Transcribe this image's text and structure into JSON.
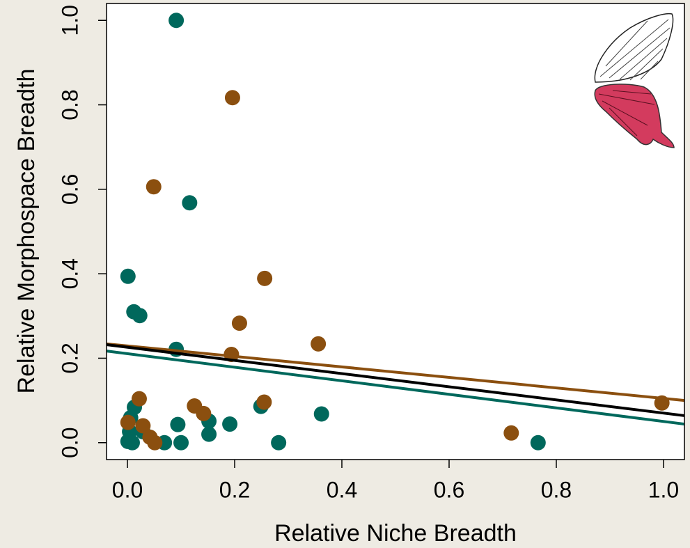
{
  "chart_data": {
    "type": "scatter",
    "xlabel": "Relative Niche Breadth",
    "ylabel": "Relative Morphospace Breadth",
    "xlim": [
      -0.039,
      1.039
    ],
    "ylim": [
      -0.04,
      1.04
    ],
    "xticks": [
      {
        "value": 0,
        "label": "0.0"
      },
      0.2,
      0.4,
      0.6,
      0.8,
      {
        "value": 1,
        "label": "1.0"
      }
    ],
    "yticks": [
      {
        "value": 0,
        "label": "0.0"
      },
      0.2,
      0.4,
      0.6,
      0.8,
      {
        "value": 1,
        "label": "1.0"
      }
    ],
    "series": [
      {
        "color": "#00685c",
        "x": [
          0.091,
          0.116,
          0.001,
          0.012,
          0.023,
          0.091,
          0.013,
          0.006,
          0.004,
          0.001,
          0.009,
          0.029,
          0.069,
          0.094,
          0.1,
          0.152,
          0.152,
          0.191,
          0.249,
          0.282,
          0.362,
          0.766
        ],
        "values": [
          1.0,
          0.568,
          0.394,
          0.31,
          0.301,
          0.221,
          0.084,
          0.059,
          0.026,
          0.003,
          0.0,
          0.026,
          0.0,
          0.043,
          0.0,
          0.051,
          0.02,
          0.044,
          0.086,
          0.0,
          0.068,
          0.0
        ]
      },
      {
        "color": "#8b4f0f",
        "x": [
          0.196,
          0.049,
          0.256,
          0.209,
          0.356,
          0.194,
          0.022,
          0.125,
          0.142,
          0.255,
          0.001,
          0.029,
          0.042,
          0.051,
          0.716,
          0.997
        ],
        "values": [
          0.817,
          0.606,
          0.389,
          0.283,
          0.234,
          0.209,
          0.104,
          0.087,
          0.069,
          0.096,
          0.048,
          0.04,
          0.013,
          0.0,
          0.023,
          0.094
        ]
      }
    ],
    "fits": [
      {
        "color": "#8b4f0f",
        "x": [
          -0.039,
          1.039
        ],
        "y": [
          0.234,
          0.1
        ]
      },
      {
        "color": "#000000",
        "x": [
          -0.039,
          1.039
        ],
        "y": [
          0.232,
          0.064
        ]
      },
      {
        "color": "#00685c",
        "x": [
          -0.039,
          1.039
        ],
        "y": [
          0.217,
          0.044
        ]
      }
    ]
  }
}
